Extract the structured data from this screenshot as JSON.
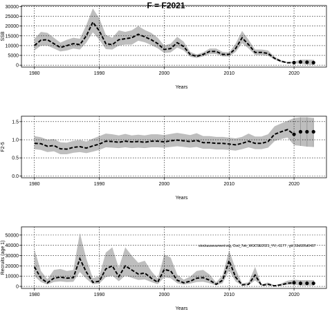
{
  "figure": {
    "title": "F = F2021",
    "annotation": "stockassessment.org, Cod_7ek_WGCSE2021_YV, r1177 , git: 69d926d0437"
  },
  "colors": {
    "band": "#bebebe",
    "line": "#000000",
    "grid": "#000000"
  },
  "chart_data": [
    {
      "type": "line",
      "panel": "ssb",
      "ylabel": "SSB",
      "xlabel": "Years",
      "xlim": [
        1978,
        2025
      ],
      "ylim": [
        -1000,
        30500
      ],
      "xticks": [
        1980,
        1990,
        2000,
        2010,
        2020
      ],
      "yticks": [
        0,
        5000,
        10000,
        15000,
        20000,
        25000,
        30000
      ],
      "grid": true,
      "x": [
        1980,
        1981,
        1982,
        1983,
        1984,
        1985,
        1986,
        1987,
        1988,
        1989,
        1990,
        1991,
        1992,
        1993,
        1994,
        1995,
        1996,
        1997,
        1998,
        1999,
        2000,
        2001,
        2002,
        2003,
        2004,
        2005,
        2006,
        2007,
        2008,
        2009,
        2010,
        2011,
        2012,
        2013,
        2014,
        2015,
        2016,
        2017,
        2018,
        2019,
        2020
      ],
      "values": [
        10000,
        12800,
        13000,
        11000,
        9000,
        10000,
        11000,
        10500,
        15000,
        22000,
        17500,
        11000,
        10500,
        13000,
        13500,
        14000,
        15800,
        14500,
        13000,
        11000,
        8000,
        8500,
        11500,
        9500,
        5500,
        4500,
        5500,
        7000,
        7000,
        5500,
        5500,
        8500,
        14000,
        10500,
        6500,
        6500,
        6000,
        3500,
        2000,
        1200,
        1300
      ],
      "upper": [
        13500,
        17000,
        16500,
        14000,
        11500,
        13000,
        14000,
        13500,
        20500,
        29000,
        24000,
        15500,
        14000,
        17800,
        17000,
        17800,
        20000,
        18000,
        16500,
        14000,
        10000,
        11000,
        14500,
        12000,
        6800,
        5500,
        6500,
        8500,
        8500,
        6800,
        6500,
        11000,
        17500,
        13000,
        8000,
        8000,
        7500,
        4300,
        2500,
        1600,
        1800
      ],
      "lower": [
        7500,
        10000,
        10000,
        8500,
        7000,
        7500,
        8500,
        8000,
        11500,
        16800,
        13000,
        8200,
        8000,
        10000,
        10500,
        10500,
        12500,
        11700,
        10300,
        8600,
        6200,
        6500,
        9000,
        7500,
        4300,
        3700,
        4500,
        5700,
        5700,
        4500,
        4500,
        6700,
        11200,
        8500,
        5200,
        5200,
        4800,
        2800,
        1500,
        900,
        950
      ],
      "forecast_x": [
        2020,
        2021,
        2022,
        2023
      ],
      "forecast_values": [
        1300,
        1600,
        1500,
        1300
      ],
      "forecast_upper": [
        1800,
        2800,
        2800,
        2700
      ],
      "forecast_lower": [
        950,
        700,
        300,
        100
      ]
    },
    {
      "type": "line",
      "panel": "f",
      "ylabel": "F2-5",
      "xlabel": "Years",
      "xlim": [
        1978,
        2025
      ],
      "ylim": [
        -0.05,
        1.65
      ],
      "xticks": [
        1980,
        1990,
        2000,
        2010,
        2020
      ],
      "yticks": [
        0.0,
        0.5,
        1.0,
        1.5
      ],
      "ytick_labels": [
        "0.0",
        "0.5",
        "1.0",
        "1.5"
      ],
      "grid": true,
      "x": [
        1980,
        1981,
        1982,
        1983,
        1984,
        1985,
        1986,
        1987,
        1988,
        1989,
        1990,
        1991,
        1992,
        1993,
        1994,
        1995,
        1996,
        1997,
        1998,
        1999,
        2000,
        2001,
        2002,
        2003,
        2004,
        2005,
        2006,
        2007,
        2008,
        2009,
        2010,
        2011,
        2012,
        2013,
        2014,
        2015,
        2016,
        2017,
        2018,
        2019,
        2020
      ],
      "values": [
        0.9,
        0.89,
        0.82,
        0.84,
        0.75,
        0.74,
        0.79,
        0.81,
        0.77,
        0.83,
        0.88,
        0.96,
        0.95,
        0.93,
        0.96,
        0.94,
        0.95,
        0.93,
        0.96,
        0.96,
        0.94,
        0.97,
        0.99,
        0.97,
        0.95,
        0.98,
        0.92,
        0.92,
        0.9,
        0.9,
        0.88,
        0.86,
        0.9,
        0.96,
        0.9,
        0.9,
        0.95,
        1.15,
        1.22,
        1.28,
        1.15
      ],
      "upper": [
        1.1,
        1.07,
        1.0,
        1.02,
        0.93,
        0.92,
        0.97,
        0.99,
        0.95,
        1.03,
        1.1,
        1.17,
        1.15,
        1.12,
        1.16,
        1.12,
        1.14,
        1.12,
        1.15,
        1.15,
        1.13,
        1.16,
        1.19,
        1.16,
        1.13,
        1.18,
        1.1,
        1.1,
        1.08,
        1.08,
        1.06,
        1.04,
        1.08,
        1.17,
        1.09,
        1.09,
        1.15,
        1.37,
        1.45,
        1.52,
        1.6
      ],
      "lower": [
        0.74,
        0.72,
        0.66,
        0.68,
        0.6,
        0.6,
        0.64,
        0.66,
        0.63,
        0.67,
        0.72,
        0.79,
        0.78,
        0.77,
        0.79,
        0.77,
        0.78,
        0.77,
        0.79,
        0.79,
        0.78,
        0.8,
        0.82,
        0.8,
        0.78,
        0.8,
        0.75,
        0.75,
        0.73,
        0.73,
        0.72,
        0.7,
        0.74,
        0.79,
        0.74,
        0.74,
        0.78,
        0.96,
        1.02,
        1.06,
        0.85
      ],
      "forecast_x": [
        2020,
        2021,
        2022,
        2023
      ],
      "forecast_values": [
        1.15,
        1.22,
        1.22,
        1.22
      ],
      "forecast_upper": [
        1.6,
        1.62,
        1.62,
        1.6
      ],
      "forecast_lower": [
        0.85,
        0.83,
        0.81,
        0.8
      ]
    },
    {
      "type": "line",
      "panel": "recruits",
      "ylabel": "Recruits (age 1)",
      "xlabel": "Years",
      "xlim": [
        1978,
        2025
      ],
      "ylim": [
        -2000,
        58000
      ],
      "xticks": [
        1980,
        1990,
        2000,
        2010,
        2020
      ],
      "yticks": [
        0,
        10000,
        20000,
        30000,
        40000,
        50000
      ],
      "grid": true,
      "x": [
        1980,
        1981,
        1982,
        1983,
        1984,
        1985,
        1986,
        1987,
        1988,
        1989,
        1990,
        1991,
        1992,
        1993,
        1994,
        1995,
        1996,
        1997,
        1998,
        1999,
        2000,
        2001,
        2002,
        2003,
        2004,
        2005,
        2006,
        2007,
        2008,
        2009,
        2010,
        2011,
        2012,
        2013,
        2014,
        2015,
        2016,
        2017,
        2018,
        2019,
        2020
      ],
      "values": [
        19000,
        8000,
        3500,
        8000,
        9000,
        8000,
        8500,
        27000,
        14000,
        4000,
        5000,
        17000,
        20000,
        9500,
        20000,
        16000,
        12000,
        13000,
        8000,
        4000,
        16500,
        15000,
        6000,
        3500,
        5000,
        8000,
        8500,
        6000,
        2000,
        6000,
        25000,
        9000,
        1500,
        2000,
        11000,
        1000,
        2000,
        500,
        1500,
        3000,
        3500
      ],
      "upper": [
        36000,
        15000,
        7000,
        16000,
        17000,
        15000,
        16000,
        52000,
        27000,
        8000,
        10000,
        33000,
        38000,
        18000,
        38000,
        30000,
        23000,
        25000,
        15000,
        7500,
        31000,
        28000,
        11500,
        6500,
        9500,
        15000,
        16000,
        11500,
        3800,
        11000,
        35000,
        17000,
        3000,
        4000,
        19000,
        2000,
        3800,
        1000,
        2800,
        5500,
        6500
      ],
      "lower": [
        10000,
        4200,
        1800,
        4200,
        4800,
        4200,
        4500,
        14000,
        7300,
        2100,
        2600,
        9000,
        10500,
        5000,
        10500,
        8400,
        6300,
        6800,
        4200,
        2100,
        8700,
        7900,
        3100,
        1800,
        2600,
        4200,
        4500,
        3100,
        1000,
        3100,
        15500,
        4700,
        800,
        1000,
        5800,
        500,
        1000,
        250,
        800,
        1600,
        1800
      ],
      "forecast_x": [
        2020,
        2021,
        2022,
        2023
      ],
      "forecast_values": [
        3500,
        3000,
        3000,
        3000
      ],
      "forecast_upper": [
        6500,
        6000,
        6000,
        6000
      ],
      "forecast_lower": [
        1800,
        800,
        800,
        800
      ]
    }
  ]
}
